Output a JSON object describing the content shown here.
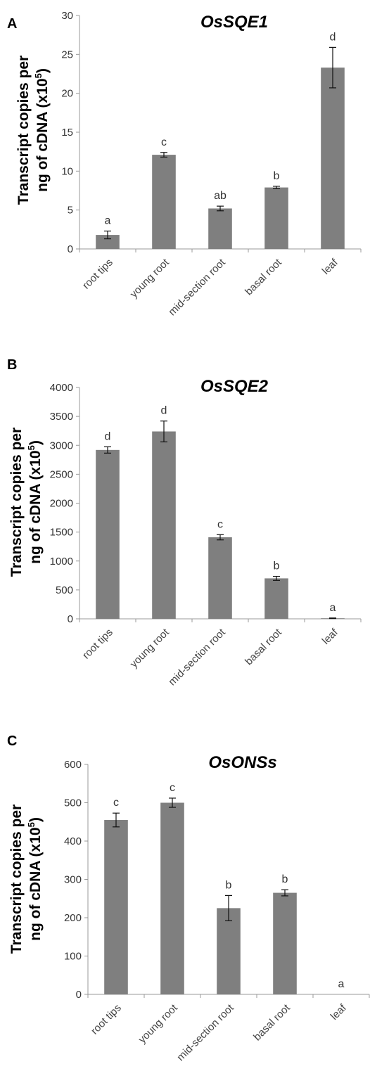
{
  "chart_data": [
    {
      "type": "bar",
      "panel": "A",
      "title": "OsSQE1",
      "ylabel_line1": "Transcript copies per",
      "ylabel_line2_pre": "ng of cDNA (x10",
      "ylabel_sup": "5",
      "ylabel_line2_post": ")",
      "categories": [
        "root tips",
        "young root",
        "mid-section root",
        "basal root",
        "leaf"
      ],
      "values": [
        1.8,
        12.1,
        5.2,
        7.9,
        23.3
      ],
      "errors": [
        0.5,
        0.3,
        0.3,
        0.15,
        2.6
      ],
      "significance": [
        "a",
        "c",
        "ab",
        "b",
        "d"
      ],
      "ylim": [
        0,
        30
      ],
      "yticks": [
        0,
        5,
        10,
        15,
        20,
        25,
        30
      ],
      "bar_color": "#7f7f7f"
    },
    {
      "type": "bar",
      "panel": "B",
      "title": "OsSQE2",
      "ylabel_line1": "Transcript copies per",
      "ylabel_line2_pre": "ng of cDNA (x10",
      "ylabel_sup": "5",
      "ylabel_line2_post": ")",
      "categories": [
        "root tips",
        "young root",
        "mid-section root",
        "basal root",
        "leaf"
      ],
      "values": [
        2920,
        3240,
        1410,
        700,
        10
      ],
      "errors": [
        55,
        180,
        45,
        35,
        5
      ],
      "significance": [
        "d",
        "d",
        "c",
        "b",
        "a"
      ],
      "ylim": [
        0,
        4000
      ],
      "yticks": [
        0,
        500,
        1000,
        1500,
        2000,
        2500,
        3000,
        3500,
        4000
      ],
      "bar_color": "#7f7f7f"
    },
    {
      "type": "bar",
      "panel": "C",
      "title": "OsONSs",
      "ylabel_line1": "Transcript copies per",
      "ylabel_line2_pre": "ng of cDNA (x10",
      "ylabel_sup": "5",
      "ylabel_line2_post": ")",
      "categories": [
        "root tips",
        "young root",
        "mid-section root",
        "basal root",
        "leaf"
      ],
      "values": [
        455,
        500,
        225,
        265,
        0
      ],
      "errors": [
        18,
        12,
        33,
        8,
        0
      ],
      "significance": [
        "c",
        "c",
        "b",
        "b",
        "a"
      ],
      "ylim": [
        0,
        600
      ],
      "yticks": [
        0,
        100,
        200,
        300,
        400,
        500,
        600
      ],
      "bar_color": "#7f7f7f"
    }
  ]
}
